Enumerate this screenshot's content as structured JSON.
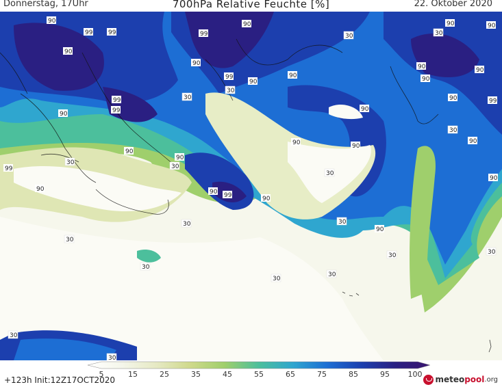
{
  "header": {
    "valid_time": "Donnerstag, 17Uhr",
    "title": "700hPa Relative Feuchte [%]",
    "date": "22. Oktober 2020"
  },
  "footer": {
    "run_info": "+123h  Init:12Z17OCT2020"
  },
  "legend": {
    "ticks": [
      "5",
      "15",
      "25",
      "35",
      "45",
      "55",
      "65",
      "75",
      "85",
      "95",
      "100"
    ],
    "colors": [
      "#ffffff",
      "#f4f6ea",
      "#e6e9c4",
      "#cfd98b",
      "#9fcf6c",
      "#4cbf9c",
      "#2fa6cf",
      "#1d6ed4",
      "#1c3fae",
      "#2a1f82",
      "#3a1470"
    ]
  },
  "contour_labels": [
    "90",
    "99",
    "99",
    "90",
    "99",
    "90",
    "99",
    "99",
    "90",
    "90",
    "99",
    "99",
    "90",
    "90",
    "90",
    "90",
    "90",
    "90",
    "90",
    "99",
    "90",
    "90",
    "90",
    "90",
    "90",
    "90",
    "90",
    "90",
    "90",
    "90",
    "99",
    "90",
    "90",
    "30",
    "30",
    "30",
    "30",
    "30",
    "30",
    "30",
    "30",
    "30",
    "30",
    "30",
    "30",
    "30",
    "30",
    "30",
    "30",
    "30",
    "30"
  ],
  "logo": {
    "text1": "meteo",
    "text2": "pool",
    "text3": ".org"
  },
  "colors": {
    "very_dry": "#ffffff",
    "dry": "#e6e9c4",
    "mid": "#9fcf6c",
    "moist": "#2fa6cf",
    "wet": "#1d6ed4",
    "saturated": "#2a1f82"
  }
}
